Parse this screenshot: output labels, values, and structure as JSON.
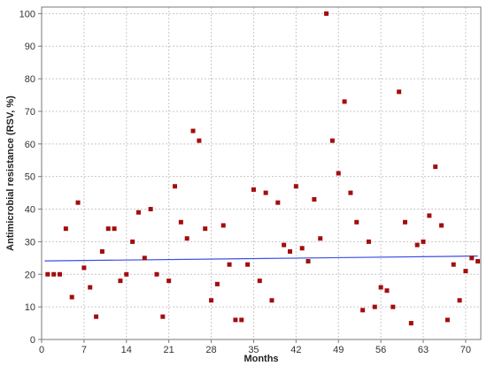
{
  "chart_data": {
    "type": "scatter",
    "xlabel": "Months",
    "ylabel": "Antimicrobial resistance (RSV, %)",
    "xlim": [
      0,
      72.5
    ],
    "ylim": [
      0,
      102
    ],
    "x_ticks": [
      0,
      7,
      14,
      21,
      28,
      35,
      42,
      49,
      56,
      63,
      70
    ],
    "y_ticks": [
      0,
      10,
      20,
      30,
      40,
      50,
      60,
      70,
      80,
      90,
      100
    ],
    "grid": true,
    "legend": "none",
    "colors": {
      "points": "#a30d0d",
      "trend": "#3d4ee6",
      "grid": "#c8c8c8",
      "axis": "#7a7a7a"
    },
    "series": [
      {
        "kind": "points",
        "x": [
          1,
          2,
          3,
          4,
          5,
          6,
          7,
          8,
          9,
          10,
          11,
          12,
          13,
          14,
          15,
          16,
          17,
          18,
          19,
          20,
          21,
          22,
          23,
          24,
          25,
          26,
          27,
          28,
          29,
          30,
          31,
          32,
          33,
          34,
          35,
          36,
          37,
          38,
          39,
          40,
          41,
          42,
          43,
          44,
          45,
          46,
          47,
          48,
          49,
          50,
          51,
          52,
          53,
          54,
          55,
          56,
          57,
          58,
          59,
          60,
          61,
          62,
          63,
          64,
          65,
          66,
          67,
          68,
          69,
          70,
          71,
          72
        ],
        "y": [
          20,
          20,
          20,
          34,
          13,
          42,
          22,
          16,
          7,
          27,
          34,
          34,
          18,
          20,
          30,
          39,
          25,
          40,
          20,
          7,
          18,
          47,
          36,
          31,
          64,
          61,
          34,
          12,
          17,
          35,
          23,
          6,
          6,
          23,
          46,
          18,
          45,
          12,
          42,
          29,
          27,
          47,
          28,
          24,
          43,
          31,
          100,
          61,
          51,
          73,
          45,
          36,
          9,
          30,
          10,
          16,
          15,
          10,
          76,
          36,
          5,
          29,
          30,
          38,
          53,
          35,
          6,
          23,
          12,
          21,
          25,
          24
        ]
      },
      {
        "kind": "trend",
        "x": [
          0.5,
          72
        ],
        "y": [
          24.1,
          25.6
        ]
      }
    ]
  }
}
